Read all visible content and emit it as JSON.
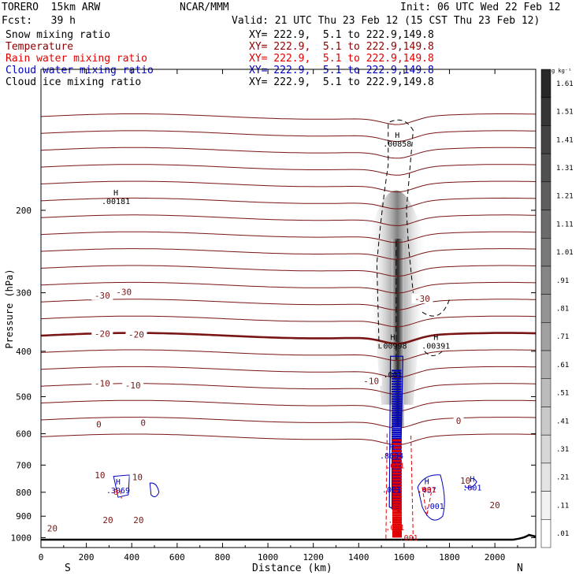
{
  "header": {
    "model": "TORERO  15km ARW",
    "org": "NCAR/MMM",
    "init": "Init: 06 UTC Wed 22 Feb 12",
    "fcst": "Fcst:   39 h",
    "valid": "Valid: 21 UTC Thu 23 Feb 12 (15 CST Thu 23 Feb 12)",
    "fields": [
      {
        "name": "Snow mixing ratio",
        "xy": "XY= 222.9,  5.1 to 222.9,149.8",
        "color": "#000000"
      },
      {
        "name": "Temperature",
        "xy": "XY= 222.9,  5.1 to 222.9,149.8",
        "color": "#8b0000"
      },
      {
        "name": "Rain water mixing ratio",
        "xy": "XY= 222.9,  5.1 to 222.9,149.8",
        "color": "#e00000"
      },
      {
        "name": "Cloud water mixing ratio",
        "xy": "XY= 222.9,  5.1 to 222.9,149.8",
        "color": "#0000c0"
      },
      {
        "name": "Cloud ice mixing ratio",
        "xy": "XY= 222.9,  5.1 to 222.9,149.8",
        "color": "#000000"
      }
    ]
  },
  "colors": {
    "temperature": "#7a1515",
    "rain": "#e00000",
    "cloud_water": "#0000c0",
    "snow": "#000000",
    "frame": "#000000"
  },
  "chart_data": {
    "type": "contour",
    "xlabel": "Distance (km)",
    "ylabel": "Pressure (hPa)",
    "xlim": [
      0,
      2180
    ],
    "ylim": [
      1050,
      100
    ],
    "y_scale": "log",
    "x_ticks": [
      0,
      200,
      400,
      600,
      800,
      1000,
      1200,
      1400,
      1600,
      1800,
      2000
    ],
    "y_ticks": [
      200,
      300,
      400,
      500,
      600,
      700,
      800,
      900,
      1000
    ],
    "x_end_labels": {
      "left": "S",
      "right": "N"
    },
    "colorbar": {
      "unit": "g kg⁻¹",
      "levels": [
        "1.61",
        "1.51",
        "1.41",
        "1.31",
        "1.21",
        "1.11",
        "1.01",
        ".91",
        ".81",
        ".71",
        ".61",
        ".51",
        ".41",
        ".31",
        ".21",
        ".11",
        ".01"
      ]
    },
    "temperature_labels": [
      {
        "x": 270,
        "p": 305,
        "text": "-30"
      },
      {
        "x": 365,
        "p": 300,
        "text": "-30"
      },
      {
        "x": 1680,
        "p": 310,
        "text": "-30"
      },
      {
        "x": 270,
        "p": 368,
        "text": "-20"
      },
      {
        "x": 420,
        "p": 370,
        "text": "-20"
      },
      {
        "x": 270,
        "p": 470,
        "text": "-10"
      },
      {
        "x": 405,
        "p": 475,
        "text": "-10"
      },
      {
        "x": 1455,
        "p": 465,
        "text": "-10"
      },
      {
        "x": 255,
        "p": 575,
        "text": "0"
      },
      {
        "x": 450,
        "p": 570,
        "text": "0"
      },
      {
        "x": 1840,
        "p": 565,
        "text": "0"
      },
      {
        "x": 260,
        "p": 738,
        "text": "10"
      },
      {
        "x": 425,
        "p": 745,
        "text": "10"
      },
      {
        "x": 1870,
        "p": 758,
        "text": "10"
      },
      {
        "x": 295,
        "p": 920,
        "text": "20"
      },
      {
        "x": 430,
        "p": 920,
        "text": "20"
      },
      {
        "x": 2000,
        "p": 855,
        "text": "20"
      },
      {
        "x": 50,
        "p": 958,
        "text": "20"
      }
    ],
    "extrema_labels": [
      {
        "x": 330,
        "p": 186,
        "text": "H",
        "value": ".00181",
        "color": "black"
      },
      {
        "x": 1570,
        "p": 140,
        "text": "H",
        "value": ".00858",
        "color": "black"
      },
      {
        "x": 1550,
        "p": 378,
        "text": "H",
        "value": ".00998",
        "color": "black"
      },
      {
        "x": 1740,
        "p": 378,
        "text": "H",
        "value": ".00391",
        "color": "black"
      },
      {
        "x": 1550,
        "p": 455,
        "text": "",
        "value": ".001",
        "color": "black"
      },
      {
        "x": 340,
        "p": 770,
        "text": "H",
        "value": ".3069",
        "color": "blue"
      },
      {
        "x": 1545,
        "p": 650,
        "text": "H",
        "value": ".8604",
        "color": "blue"
      },
      {
        "x": 1700,
        "p": 768,
        "text": "H",
        "value": ".437",
        "color": "blue"
      },
      {
        "x": 1900,
        "p": 760,
        "text": "H",
        "value": ".001",
        "color": "blue"
      },
      {
        "x": 1545,
        "p": 800,
        "text": "",
        "value": ".001",
        "color": "blue"
      },
      {
        "x": 1735,
        "p": 868,
        "text": "",
        "value": ".001",
        "color": "blue"
      },
      {
        "x": 1560,
        "p": 712,
        "text": "",
        "value": ".011",
        "color": "red"
      },
      {
        "x": 1700,
        "p": 800,
        "text": "",
        "value": ".001",
        "color": "red"
      },
      {
        "x": 1560,
        "p": 930,
        "text": "",
        "value": ".02",
        "color": "red"
      },
      {
        "x": 1560,
        "p": 965,
        "text": "",
        "value": ".001",
        "color": "red"
      },
      {
        "x": 1620,
        "p": 1015,
        "text": "",
        "value": ".001",
        "color": "red"
      },
      {
        "x": 330,
        "p": 810,
        "text": "",
        "value": "0",
        "color": "red"
      }
    ]
  }
}
